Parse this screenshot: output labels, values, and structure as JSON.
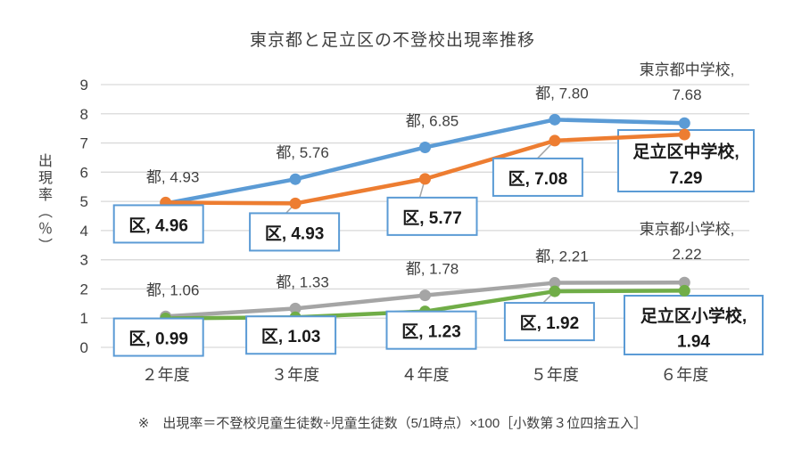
{
  "chart_data": {
    "type": "line",
    "title": "東京都と足立区の不登校出現率推移",
    "ylabel": "出現率（％）",
    "xlabel": "",
    "ylim": [
      0,
      9
    ],
    "y_ticks": [
      0,
      1,
      2,
      3,
      4,
      5,
      6,
      7,
      8,
      9
    ],
    "grid": true,
    "legend_position": "none",
    "categories": [
      "２年度",
      "３年度",
      "４年度",
      "５年度",
      "６年度"
    ],
    "series": [
      {
        "id": "tokyo-jhs",
        "name": "東京都中学校",
        "color": "#5B9BD5",
        "values": [
          4.93,
          5.76,
          6.85,
          7.8,
          7.68
        ],
        "point_labels": [
          "都, 4.93",
          "都, 5.76",
          "都, 6.85",
          "都, 7.80"
        ],
        "point_label_style": "plain",
        "end_label": {
          "line1": "東京都中学校,",
          "line2": "7.68",
          "boxed": false
        }
      },
      {
        "id": "adachi-jhs",
        "name": "足立区中学校",
        "color": "#ED7D31",
        "values": [
          4.96,
          4.93,
          5.77,
          7.08,
          7.29
        ],
        "point_labels": [
          "区, 4.96",
          "区, 4.93",
          "区, 5.77",
          "区, 7.08"
        ],
        "point_label_style": "boxed",
        "end_label": {
          "line1": "足立区中学校,",
          "line2": "7.29",
          "boxed": true
        }
      },
      {
        "id": "tokyo-es",
        "name": "東京都小学校",
        "color": "#A5A5A5",
        "values": [
          1.06,
          1.33,
          1.78,
          2.21,
          2.22
        ],
        "point_labels": [
          "都, 1.06",
          "都, 1.33",
          "都, 1.78",
          "都, 2.21"
        ],
        "point_label_style": "plain",
        "end_label": {
          "line1": "東京都小学校,",
          "line2": "2.22",
          "boxed": false
        }
      },
      {
        "id": "adachi-es",
        "name": "足立区小学校",
        "color": "#70AD47",
        "values": [
          0.99,
          1.03,
          1.23,
          1.92,
          1.94
        ],
        "point_labels": [
          "区, 0.99",
          "区, 1.03",
          "区, 1.23",
          "区, 1.92"
        ],
        "point_label_style": "boxed",
        "end_label": {
          "line1": "足立区小学校,",
          "line2": "1.94",
          "boxed": true
        }
      }
    ],
    "colors": {
      "grid": "#D9D9D9",
      "text": "#404040",
      "label_box_border": "#5B9BD5",
      "label_box_fill": "#FFFFFF",
      "bold_text": "#1A1A1A",
      "leader": "#A6A6A6"
    },
    "footnote": "※　出現率＝不登校児童生徒数÷児童生徒数（5/1時点）×100［小数第３位四捨五入］"
  }
}
